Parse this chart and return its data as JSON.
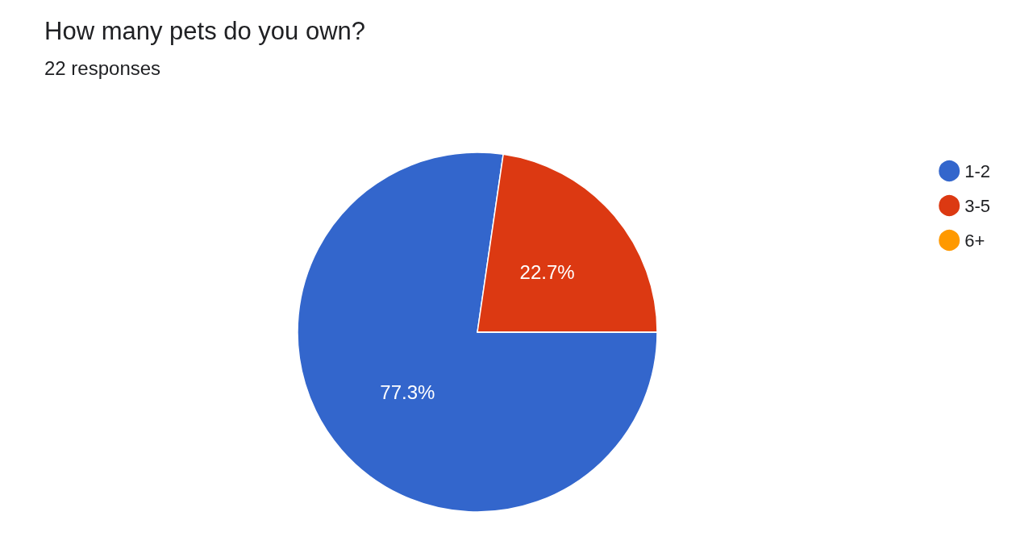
{
  "chart_data": {
    "type": "pie",
    "title": "How many pets do you own?",
    "subtitle": "22 responses",
    "categories": [
      "1-2",
      "3-5",
      "6+"
    ],
    "values": [
      77.3,
      22.7,
      0
    ],
    "colors": [
      "#3366cc",
      "#dc3912",
      "#ff9900"
    ],
    "value_labels": [
      "77.3%",
      "22.7%",
      null
    ],
    "legend": "top right"
  }
}
